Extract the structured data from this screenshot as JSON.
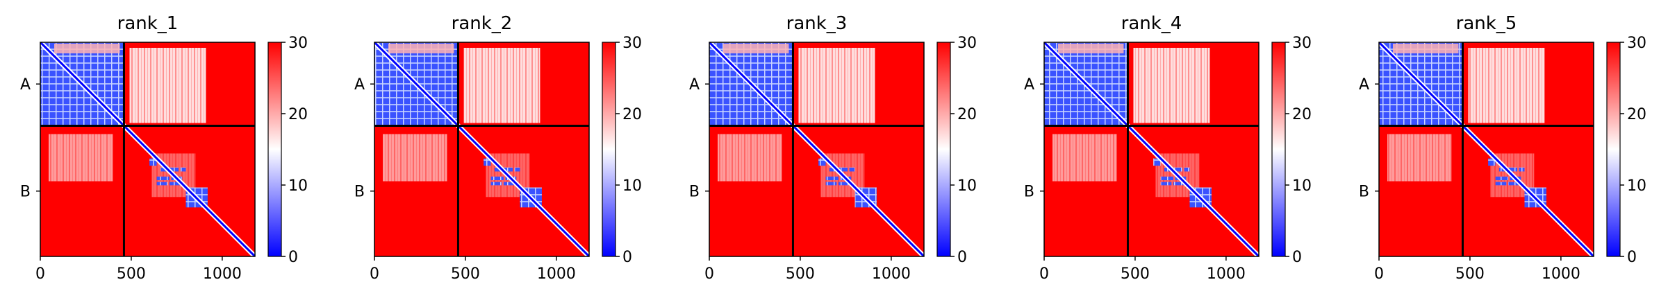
{
  "chart_data": {
    "type": "heatmap",
    "x_ticks": [
      0,
      500,
      1000
    ],
    "x_range": [
      0,
      1180
    ],
    "chain_boundary": 460,
    "y_labels": [
      "A",
      "B"
    ],
    "colorbar": {
      "min": 0,
      "max": 30,
      "ticks": [
        0,
        10,
        20,
        30
      ],
      "colors": [
        "#0000ff",
        "#ffffff",
        "#ff0000"
      ]
    },
    "panels": [
      {
        "title": "rank_1"
      },
      {
        "title": "rank_2"
      },
      {
        "title": "rank_3"
      },
      {
        "title": "rank_4"
      },
      {
        "title": "rank_5"
      }
    ]
  }
}
